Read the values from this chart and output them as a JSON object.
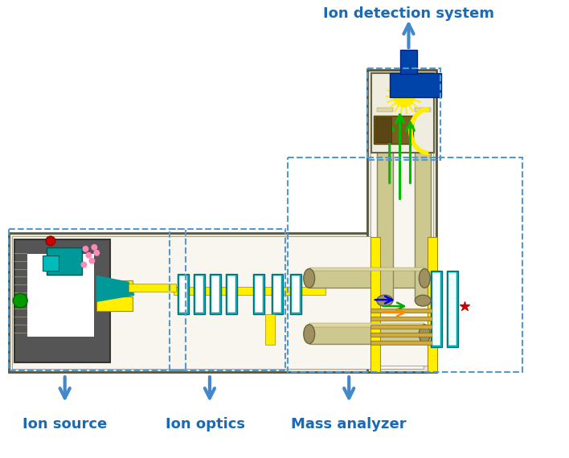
{
  "bg_color": "#ffffff",
  "label_color": "#1a6ab5",
  "label_fontsize": 13,
  "dashed_box_color": "#5599cc",
  "labels": {
    "ion_detection": "Ion detection system",
    "ion_source": "Ion source",
    "ion_optics": "Ion optics",
    "mass_analyzer": "Mass analyzer"
  },
  "arrow_color": "#4488cc",
  "yellow": "#ffee00",
  "cyan": "#00bbcc",
  "green": "#00bb00",
  "blue_dark": "#0044aa",
  "orange": "#ff8800",
  "gold": "#ccaa44",
  "gray_dark": "#555555",
  "gray_med": "#888880",
  "body_bg": "#f0ede0",
  "tube_tan": "#ccc890",
  "tube_border": "#888860"
}
